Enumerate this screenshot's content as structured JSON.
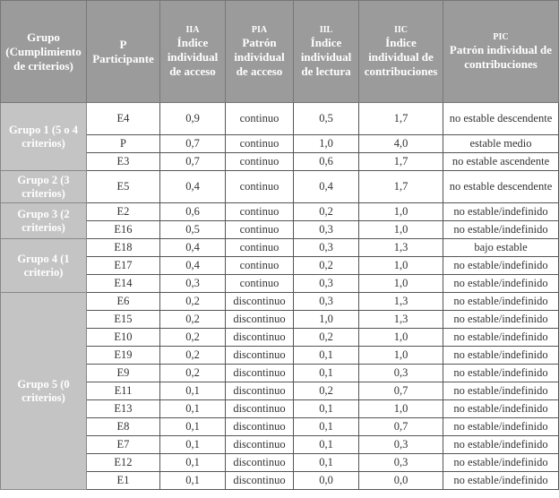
{
  "table": {
    "headers": [
      {
        "abbr": "",
        "label": "Grupo (Cumplimiento de criterios)"
      },
      {
        "abbr": "P",
        "label": "Participante"
      },
      {
        "abbr": "IIA",
        "label": "Índice individual de acceso"
      },
      {
        "abbr": "PIA",
        "label": "Patrón individual de acceso"
      },
      {
        "abbr": "IIL",
        "label": "Índice individual de lectura"
      },
      {
        "abbr": "IIC",
        "label": "Índice individual de contribuciones"
      },
      {
        "abbr": "PIC",
        "label": "Patrón individual de contribuciones"
      }
    ],
    "groups": [
      {
        "label": "Grupo 1 (5 o 4 criterios)",
        "rows": [
          {
            "p": "E4",
            "iia": "0,9",
            "pia": "continuo",
            "iil": "0,5",
            "iic": "1,7",
            "pic": "no estable descendente",
            "tall": true
          },
          {
            "p": "P",
            "iia": "0,7",
            "pia": "continuo",
            "iil": "1,0",
            "iic": "4,0",
            "pic": "estable medio"
          },
          {
            "p": "E3",
            "iia": "0,7",
            "pia": "continuo",
            "iil": "0,6",
            "iic": "1,7",
            "pic": "no estable ascendente"
          }
        ]
      },
      {
        "label": "Grupo 2 (3 criterios)",
        "rows": [
          {
            "p": "E5",
            "iia": "0,4",
            "pia": "continuo",
            "iil": "0,4",
            "iic": "1,7",
            "pic": "no estable descendente",
            "tall": true
          }
        ]
      },
      {
        "label": "Grupo 3 (2 criterios)",
        "rows": [
          {
            "p": "E2",
            "iia": "0,6",
            "pia": "continuo",
            "iil": "0,2",
            "iic": "1,0",
            "pic": "no estable/indefinido"
          },
          {
            "p": "E16",
            "iia": "0,5",
            "pia": "continuo",
            "iil": "0,3",
            "iic": "1,0",
            "pic": "no estable/indefinido"
          }
        ]
      },
      {
        "label": "Grupo 4 (1 criterio)",
        "rows": [
          {
            "p": "E18",
            "iia": "0,4",
            "pia": "continuo",
            "iil": "0,3",
            "iic": "1,3",
            "pic": "bajo estable"
          },
          {
            "p": "E17",
            "iia": "0,4",
            "pia": "continuo",
            "iil": "0,2",
            "iic": "1,0",
            "pic": "no estable/indefinido"
          },
          {
            "p": "E14",
            "iia": "0,3",
            "pia": "continuo",
            "iil": "0,3",
            "iic": "1,0",
            "pic": "no estable/indefinido"
          }
        ]
      },
      {
        "label": "Grupo 5 (0 criterios)",
        "rows": [
          {
            "p": "E6",
            "iia": "0,2",
            "pia": "discontinuo",
            "iil": "0,3",
            "iic": "1,3",
            "pic": "no estable/indefinido"
          },
          {
            "p": "E15",
            "iia": "0,2",
            "pia": "discontinuo",
            "iil": "1,0",
            "iic": "1,3",
            "pic": "no estable/indefinido"
          },
          {
            "p": "E10",
            "iia": "0,2",
            "pia": "discontinuo",
            "iil": "0,2",
            "iic": "1,0",
            "pic": "no estable/indefinido"
          },
          {
            "p": "E19",
            "iia": "0,2",
            "pia": "discontinuo",
            "iil": "0,1",
            "iic": "1,0",
            "pic": "no estable/indefinido"
          },
          {
            "p": "E9",
            "iia": "0,2",
            "pia": "discontinuo",
            "iil": "0,1",
            "iic": "0,3",
            "pic": "no estable/indefinido"
          },
          {
            "p": "E11",
            "iia": "0,1",
            "pia": "discontinuo",
            "iil": "0,2",
            "iic": "0,7",
            "pic": "no estable/indefinido"
          },
          {
            "p": "E13",
            "iia": "0,1",
            "pia": "discontinuo",
            "iil": "0,1",
            "iic": "1,0",
            "pic": "no estable/indefinido"
          },
          {
            "p": "E8",
            "iia": "0,1",
            "pia": "discontinuo",
            "iil": "0,1",
            "iic": "0,7",
            "pic": "no estable/indefinido"
          },
          {
            "p": "E7",
            "iia": "0,1",
            "pia": "discontinuo",
            "iil": "0,1",
            "iic": "0,3",
            "pic": "no estable/indefinido"
          },
          {
            "p": "E12",
            "iia": "0,1",
            "pia": "discontinuo",
            "iil": "0,1",
            "iic": "0,3",
            "pic": "no estable/indefinido"
          },
          {
            "p": "E1",
            "iia": "0,1",
            "pia": "discontinuo",
            "iil": "0,0",
            "iic": "0,0",
            "pic": "no estable/indefinido"
          }
        ]
      }
    ]
  }
}
